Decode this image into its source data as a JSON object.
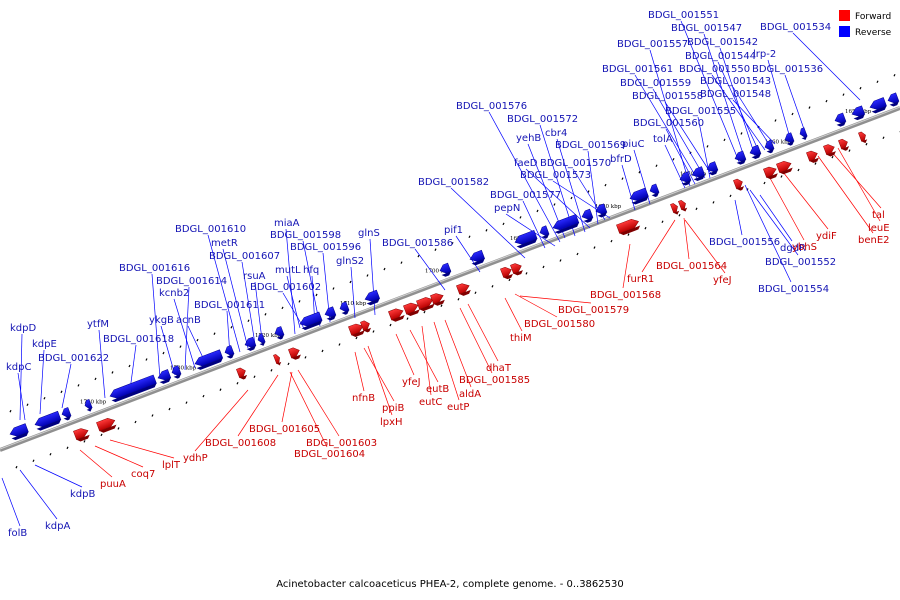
{
  "caption": "Acinetobacter calcoaceticus PHEA-2, complete genome. - 0..3862530",
  "legend": [
    {
      "label": "Forward",
      "color": "#ff0000"
    },
    {
      "label": "Reverse",
      "color": "#0000ff"
    }
  ],
  "colors": {
    "forward": "#ff0000",
    "reverse": "#0000ff",
    "forward_label": "#c80000",
    "reverse_label": "#1414b4",
    "backbone": "#808080"
  },
  "scale_ticks": [
    "1740 kbp",
    "1730 kbp",
    "1720 kbp",
    "1710 kbp",
    "1700 kbp",
    "1690 kbp",
    "1680 kbp",
    "1670 kbp",
    "1660 kbp",
    "1650 kbp"
  ],
  "reverse_genes_above": [
    "kdpD",
    "kdpE",
    "kdpC",
    "BDGL_001622",
    "ytfM",
    "BDGL_001618",
    "BDGL_001616",
    "ykgB",
    "BDGL_001614",
    "kcnb2",
    "acnB",
    "BDGL_001611",
    "BDGL_001610",
    "metR",
    "BDGL_001607",
    "rsuA",
    "miaA",
    "BDGL_001598",
    "mutL",
    "BDGL_001596",
    "hfq",
    "BDGL_001602",
    "glnS",
    "glnS2",
    "BDGL_001586",
    "pif1",
    "BDGL_001582",
    "BDGL_001577",
    "pepN",
    "BDGL_001576",
    "yehB",
    "BDGL_001572",
    "cbr4",
    "faeD",
    "BDGL_001569",
    "BDGL_001570",
    "BDGL_001573",
    "bfrD",
    "piuC",
    "tolA",
    "BDGL_001560",
    "BDGL_001555",
    "BDGL_001557",
    "BDGL_001561",
    "BDGL_001559",
    "BDGL_001558",
    "BDGL_001551",
    "BDGL_001547",
    "BDGL_001542",
    "BDGL_001544",
    "BDGL_001550",
    "BDGL_001543",
    "BDGL_001548",
    "lrp-2",
    "BDGL_001536",
    "BDGL_001534"
  ],
  "reverse_genes_below": [
    "folB",
    "kdpA",
    "kdpB",
    "BDGL_001556",
    "dgdR",
    "BDGL_001552",
    "BDGL_001554"
  ],
  "forward_genes": [
    "puuA",
    "coq7",
    "lplT",
    "ydhP",
    "BDGL_001608",
    "BDGL_001605",
    "BDGL_001603",
    "BDGL_001604",
    "nfnB",
    "ppiB",
    "lpxH",
    "yfeJ",
    "eutB",
    "eutC",
    "eutP",
    "aldA",
    "BDGL_001585",
    "dhaT",
    "thiM",
    "BDGL_001580",
    "BDGL_001579",
    "BDGL_001568",
    "furR1",
    "BDGL_001564",
    "yfeJ",
    "ydiF",
    "ybhS",
    "tal",
    "leuE",
    "benE2"
  ]
}
